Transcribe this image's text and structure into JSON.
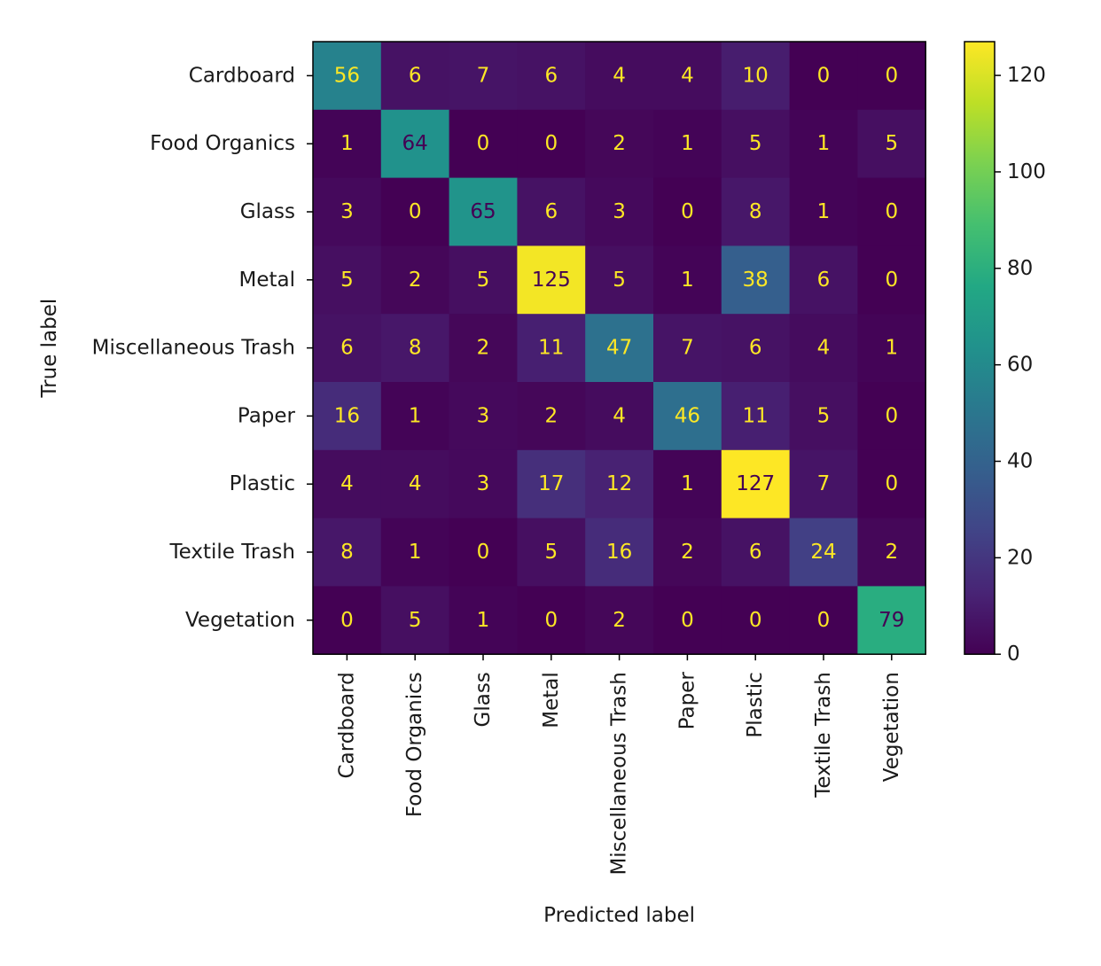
{
  "chart_data": {
    "type": "heatmap",
    "title": "",
    "xlabel": "Predicted label",
    "ylabel": "True label",
    "labels": [
      "Cardboard",
      "Food Organics",
      "Glass",
      "Metal",
      "Miscellaneous Trash",
      "Paper",
      "Plastic",
      "Textile Trash",
      "Vegetation"
    ],
    "matrix": [
      [
        56,
        6,
        7,
        6,
        4,
        4,
        10,
        0,
        0
      ],
      [
        1,
        64,
        0,
        0,
        2,
        1,
        5,
        1,
        5
      ],
      [
        3,
        0,
        65,
        6,
        3,
        0,
        8,
        1,
        0
      ],
      [
        5,
        2,
        5,
        125,
        5,
        1,
        38,
        6,
        0
      ],
      [
        6,
        8,
        2,
        11,
        47,
        7,
        6,
        4,
        1
      ],
      [
        16,
        1,
        3,
        2,
        4,
        46,
        11,
        5,
        0
      ],
      [
        4,
        4,
        3,
        17,
        12,
        1,
        127,
        7,
        0
      ],
      [
        8,
        1,
        0,
        5,
        16,
        2,
        6,
        24,
        2
      ],
      [
        0,
        5,
        1,
        0,
        2,
        0,
        0,
        0,
        79
      ]
    ],
    "colormap": "viridis",
    "vmin": 0,
    "vmax": 127,
    "colorbar": {
      "ticks": [
        0,
        20,
        40,
        60,
        80,
        100,
        120
      ],
      "tick_labels": [
        "0",
        "20",
        "40",
        "60",
        "80",
        "100",
        "120"
      ]
    },
    "text_color_light": "#fde725",
    "text_color_dark": "#440154"
  }
}
